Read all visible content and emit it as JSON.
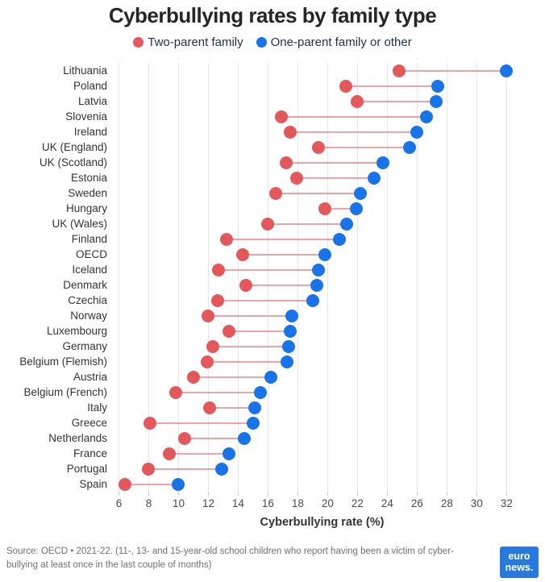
{
  "title": "Cyberbullying rates by family type",
  "legend": {
    "items": [
      {
        "label": "Two-parent family",
        "color": "#e4585c"
      },
      {
        "label": "One-parent family or other",
        "color": "#1874e8"
      }
    ]
  },
  "chart_data": {
    "type": "dumbbell",
    "title": "Cyberbullying rates by family type",
    "xlabel": "Cyberbullying rate (%)",
    "x_ticks": [
      6,
      8,
      10,
      12,
      14,
      16,
      18,
      20,
      22,
      24,
      26,
      28,
      30,
      32
    ],
    "x_range": [
      5.65,
      33.6
    ],
    "grid": "vertical",
    "legend_position": "top",
    "series_names": [
      "Two-parent family",
      "One-parent family or other"
    ],
    "series_colors": [
      "#e4585c",
      "#1874e8"
    ],
    "rows": [
      {
        "country": "Lithuania",
        "two_parent": 24.8,
        "one_parent": 32.0
      },
      {
        "country": "Poland",
        "two_parent": 21.2,
        "one_parent": 27.4
      },
      {
        "country": "Latvia",
        "two_parent": 22.0,
        "one_parent": 27.3
      },
      {
        "country": "Slovenia",
        "two_parent": 16.9,
        "one_parent": 26.6
      },
      {
        "country": "Ireland",
        "two_parent": 17.5,
        "one_parent": 26.0
      },
      {
        "country": "UK (England)",
        "two_parent": 19.4,
        "one_parent": 25.5
      },
      {
        "country": "UK (Scotland)",
        "two_parent": 17.2,
        "one_parent": 23.7
      },
      {
        "country": "Estonia",
        "two_parent": 17.9,
        "one_parent": 23.1
      },
      {
        "country": "Sweden",
        "two_parent": 16.5,
        "one_parent": 22.2
      },
      {
        "country": "Hungary",
        "two_parent": 19.8,
        "one_parent": 21.9
      },
      {
        "country": "UK (Wales)",
        "two_parent": 16.0,
        "one_parent": 21.3
      },
      {
        "country": "Finland",
        "two_parent": 13.2,
        "one_parent": 20.8
      },
      {
        "country": "OECD",
        "two_parent": 14.3,
        "one_parent": 19.8
      },
      {
        "country": "Iceland",
        "two_parent": 12.7,
        "one_parent": 19.4
      },
      {
        "country": "Denmark",
        "two_parent": 14.5,
        "one_parent": 19.3
      },
      {
        "country": "Czechia",
        "two_parent": 12.6,
        "one_parent": 19.0
      },
      {
        "country": "Norway",
        "two_parent": 12.0,
        "one_parent": 17.6
      },
      {
        "country": "Luxembourg",
        "two_parent": 13.4,
        "one_parent": 17.5
      },
      {
        "country": "Germany",
        "two_parent": 12.3,
        "one_parent": 17.4
      },
      {
        "country": "Belgium (Flemish)",
        "two_parent": 11.9,
        "one_parent": 17.3
      },
      {
        "country": "Austria",
        "two_parent": 11.0,
        "one_parent": 16.2
      },
      {
        "country": "Belgium (French)",
        "two_parent": 9.8,
        "one_parent": 15.5
      },
      {
        "country": "Italy",
        "two_parent": 12.1,
        "one_parent": 15.1
      },
      {
        "country": "Greece",
        "two_parent": 8.1,
        "one_parent": 15.0
      },
      {
        "country": "Netherlands",
        "two_parent": 10.4,
        "one_parent": 14.4
      },
      {
        "country": "France",
        "two_parent": 9.4,
        "one_parent": 13.4
      },
      {
        "country": "Portugal",
        "two_parent": 8.0,
        "one_parent": 12.9
      },
      {
        "country": "Spain",
        "two_parent": 6.4,
        "one_parent": 10.0
      }
    ]
  },
  "footer": {
    "source_text": "Source: OECD • 2021-22. (11-, 13- and 15-year-old school children who report having been a victim of cyber-bullying at least once in the last couple of months)",
    "logo_line1": "euro",
    "logo_line2": "news."
  },
  "colors": {
    "gridline": "#e7e7e7",
    "logo_background": "#2779dd"
  }
}
